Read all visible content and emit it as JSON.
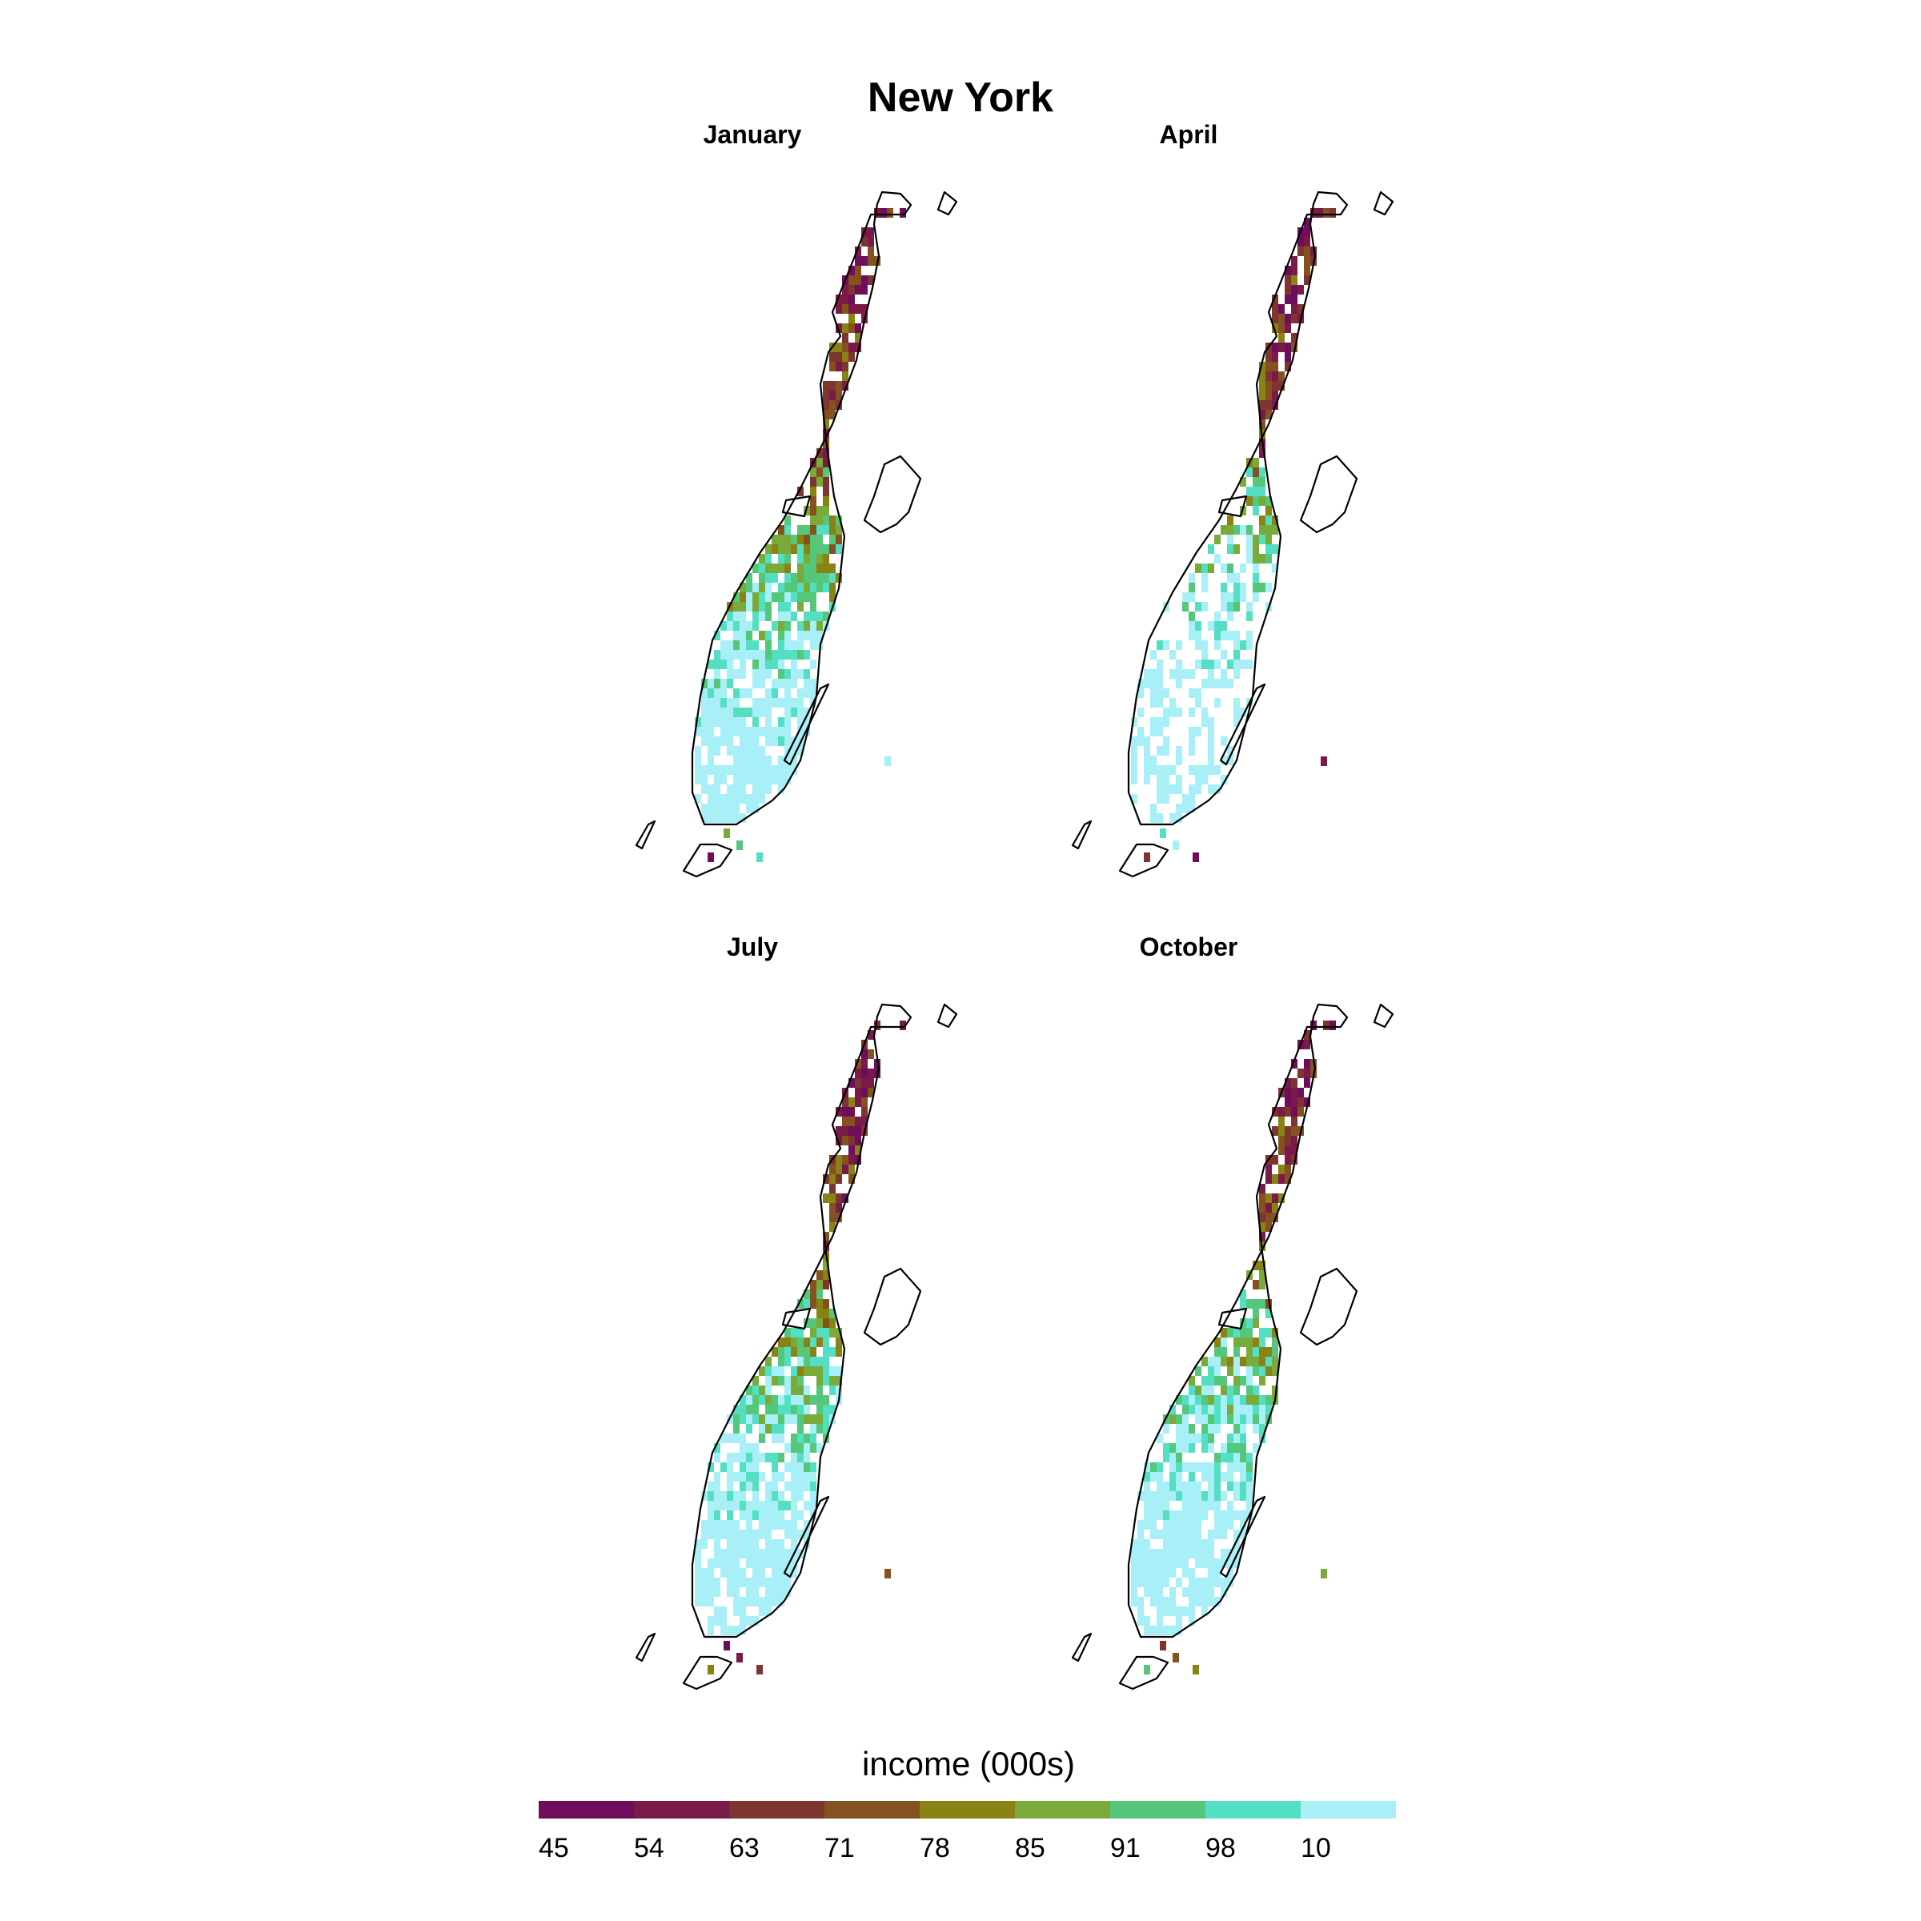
{
  "title": "New York",
  "panels": [
    {
      "name": "January",
      "seed": 11,
      "bias": 0.0
    },
    {
      "name": "April",
      "seed": 23,
      "bias": 1.0
    },
    {
      "name": "July",
      "seed": 37,
      "bias": 0.45
    },
    {
      "name": "October",
      "seed": 53,
      "bias": 0.55
    }
  ],
  "legend": {
    "title": "income (000s)",
    "ticks": [
      "45",
      "54",
      "63",
      "71",
      "78",
      "85",
      "91",
      "98",
      "10"
    ],
    "colors": [
      "#6e0d5c",
      "#7a1a48",
      "#7d3530",
      "#84521f",
      "#898214",
      "#7aaa3a",
      "#55c77a",
      "#55dfc2",
      "#a8eff8"
    ]
  }
}
